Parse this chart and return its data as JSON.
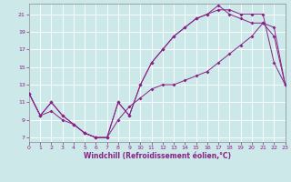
{
  "xlabel": "Windchill (Refroidissement éolien,°C)",
  "bg_color": "#cce8e8",
  "grid_color": "#aacccc",
  "line_color": "#882288",
  "x_ticks": [
    0,
    1,
    2,
    3,
    4,
    5,
    6,
    7,
    8,
    9,
    10,
    11,
    12,
    13,
    14,
    15,
    16,
    17,
    18,
    19,
    20,
    21,
    22,
    23
  ],
  "y_ticks": [
    7,
    9,
    11,
    13,
    15,
    17,
    19,
    21
  ],
  "xlim": [
    0,
    23
  ],
  "ylim": [
    6.5,
    22.2
  ],
  "line1_x": [
    0,
    1,
    2,
    3,
    4,
    5,
    6,
    7,
    8,
    9,
    10,
    11,
    12,
    13,
    14,
    15,
    16,
    17,
    18,
    19,
    20,
    21,
    22,
    23
  ],
  "line1_y": [
    12.0,
    9.5,
    10.0,
    9.0,
    8.5,
    7.5,
    7.0,
    7.0,
    9.0,
    10.5,
    11.5,
    12.5,
    13.0,
    13.0,
    13.5,
    14.0,
    14.5,
    15.5,
    16.5,
    17.5,
    18.5,
    20.0,
    19.5,
    13.0
  ],
  "line2_x": [
    0,
    1,
    2,
    3,
    4,
    5,
    6,
    7,
    8,
    9,
    10,
    11,
    12,
    13,
    14,
    15,
    16,
    17,
    18,
    19,
    20,
    21,
    22,
    23
  ],
  "line2_y": [
    12.0,
    9.5,
    11.0,
    9.5,
    8.5,
    7.5,
    7.0,
    7.0,
    11.0,
    9.5,
    13.0,
    15.5,
    17.0,
    18.5,
    19.5,
    20.5,
    21.0,
    21.5,
    21.5,
    21.0,
    21.0,
    21.0,
    15.5,
    13.0
  ],
  "line3_x": [
    0,
    1,
    2,
    3,
    4,
    5,
    6,
    7,
    8,
    9,
    10,
    11,
    12,
    13,
    14,
    15,
    16,
    17,
    18,
    19,
    20,
    21,
    22,
    23
  ],
  "line3_y": [
    12.0,
    9.5,
    11.0,
    9.5,
    8.5,
    7.5,
    7.0,
    7.0,
    11.0,
    9.5,
    13.0,
    15.5,
    17.0,
    18.5,
    19.5,
    20.5,
    21.0,
    22.0,
    21.0,
    20.5,
    20.0,
    20.0,
    18.5,
    13.0
  ]
}
